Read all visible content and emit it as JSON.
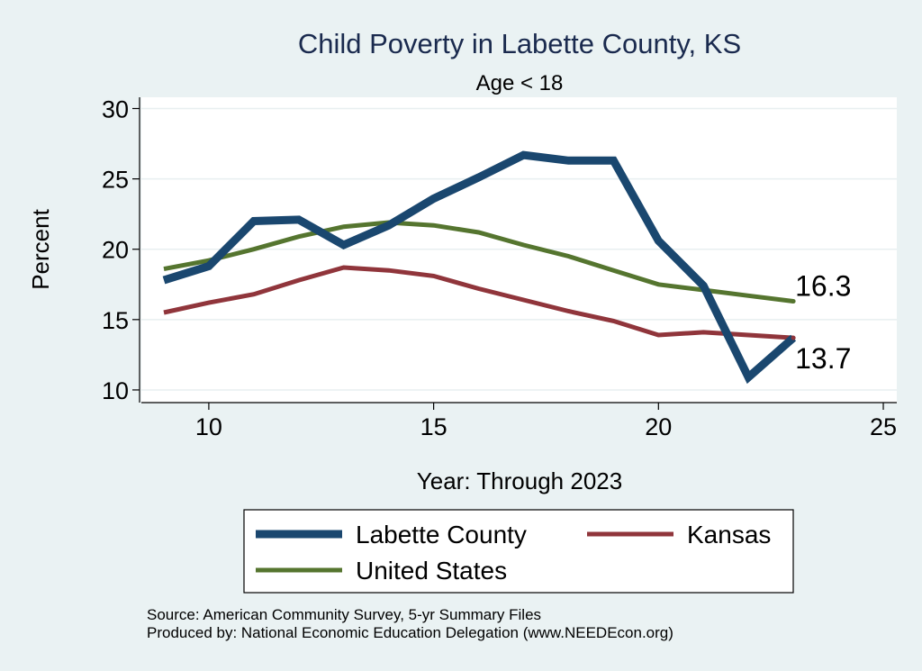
{
  "chart_data": {
    "type": "line",
    "title": "Child Poverty in Labette County, KS",
    "subtitle": "Age < 18",
    "xlabel": "Year: Through 2023",
    "ylabel": "Percent",
    "xlim": [
      8.5,
      25.3
    ],
    "ylim": [
      9.1,
      30.8
    ],
    "xticks": [
      10,
      15,
      20,
      25
    ],
    "yticks": [
      10,
      15,
      20,
      25,
      30
    ],
    "x": [
      9,
      10,
      11,
      12,
      13,
      14,
      15,
      16,
      17,
      18,
      19,
      20,
      21,
      22,
      23
    ],
    "series": [
      {
        "name": "Labette County",
        "color": "#1a476f",
        "width": 9,
        "values": [
          17.8,
          18.8,
          22.0,
          22.1,
          20.3,
          21.7,
          23.6,
          25.1,
          26.7,
          26.3,
          26.3,
          20.6,
          17.4,
          10.9,
          13.7
        ]
      },
      {
        "name": "Kansas",
        "color": "#90353b",
        "width": 5,
        "values": [
          15.5,
          16.2,
          16.8,
          17.8,
          18.7,
          18.5,
          18.1,
          17.2,
          16.4,
          15.6,
          14.9,
          13.9,
          14.1,
          13.9,
          13.7
        ]
      },
      {
        "name": "United States",
        "color": "#55752f",
        "width": 5,
        "values": [
          18.6,
          19.2,
          20.0,
          20.9,
          21.6,
          21.9,
          21.7,
          21.2,
          20.3,
          19.5,
          18.5,
          17.5,
          17.1,
          16.7,
          16.3
        ]
      }
    ],
    "end_labels": [
      {
        "text": "16.3",
        "x": 23,
        "y": 16.3,
        "color": "#55752f"
      },
      {
        "text": "13.7",
        "x": 23,
        "y": 13.7,
        "color": "#90353b"
      }
    ],
    "legend": {
      "position": "bottom",
      "items": [
        {
          "label": "Labette County",
          "color": "#1a476f"
        },
        {
          "label": "Kansas",
          "color": "#90353b"
        },
        {
          "label": "United States",
          "color": "#55752f"
        }
      ]
    }
  },
  "notes": {
    "source": "Source: American Community Survey, 5-yr Summary Files",
    "produced": "Produced by: National Economic Education Delegation (www.NEEDEcon.org)"
  },
  "colors": {
    "background": "#eaf2f3",
    "plot_background": "#ffffff",
    "title": "#1a2a4e",
    "grid": "#e8eff0"
  }
}
